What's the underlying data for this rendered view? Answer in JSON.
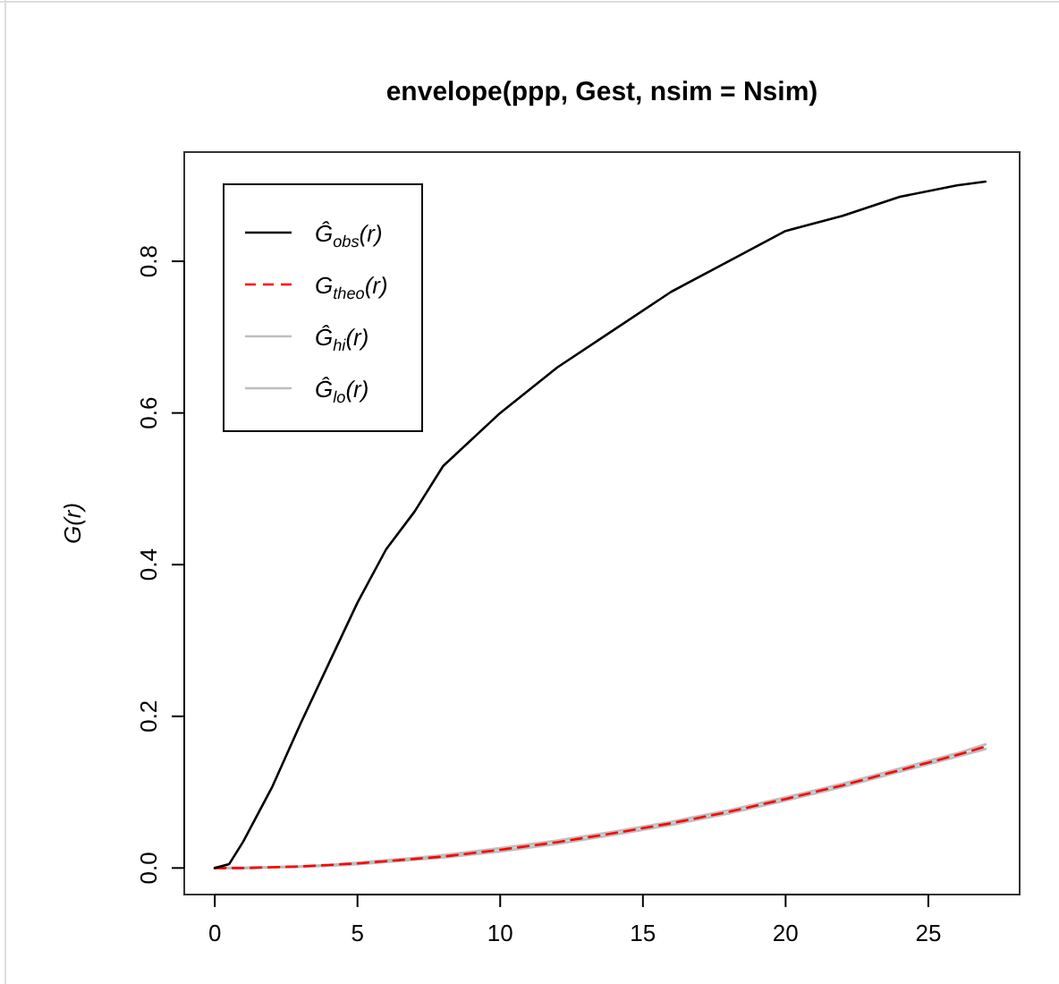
{
  "chart_data": {
    "type": "line",
    "title": "envelope(ppp, Gest, nsim = Nsim)",
    "ylabel": "G(r)",
    "x": [
      0,
      0.5,
      1,
      2,
      3,
      4,
      5,
      6,
      7,
      8,
      10,
      12,
      14,
      16,
      18,
      20,
      22,
      24,
      26,
      27
    ],
    "series": [
      {
        "name": "Ĝ$_{obs}$(r)",
        "color": "#000000",
        "line_style": "solid",
        "values": [
          0,
          0.005,
          0.035,
          0.106,
          0.19,
          0.27,
          0.35,
          0.42,
          0.47,
          0.53,
          0.6,
          0.66,
          0.71,
          0.76,
          0.8,
          0.84,
          0.86,
          0.885,
          0.9,
          0.905
        ]
      },
      {
        "name": "G$_{theo}$(r)",
        "color": "#ff0000",
        "line_style": "dashed",
        "values": [
          0,
          0,
          0,
          0.001,
          0.002,
          0.004,
          0.006,
          0.009,
          0.012,
          0.015,
          0.024,
          0.034,
          0.046,
          0.059,
          0.074,
          0.091,
          0.109,
          0.129,
          0.149,
          0.16
        ]
      },
      {
        "name": "Ĝ$_{hi}$(r)",
        "color": "#bebebe",
        "line_style": "solid",
        "values": [
          0,
          0,
          0,
          0.001,
          0.002,
          0.004,
          0.007,
          0.01,
          0.013,
          0.017,
          0.026,
          0.036,
          0.048,
          0.061,
          0.076,
          0.093,
          0.111,
          0.131,
          0.151,
          0.163
        ]
      },
      {
        "name": "Ĝ$_{lo}$(r)",
        "color": "#bebebe",
        "line_style": "solid",
        "values": [
          0,
          0,
          0,
          0.001,
          0.002,
          0.003,
          0.005,
          0.008,
          0.011,
          0.014,
          0.022,
          0.032,
          0.044,
          0.057,
          0.072,
          0.089,
          0.107,
          0.127,
          0.147,
          0.157
        ]
      }
    ],
    "xlim": [
      -1.07,
      28.2
    ],
    "ylim": [
      -0.035,
      0.944
    ],
    "xticks": [
      0,
      5,
      10,
      15,
      20,
      25
    ],
    "yticks": [
      {
        "value": 0,
        "label": "0.0"
      },
      {
        "value": 0.2,
        "label": "0.2"
      },
      {
        "value": 0.4,
        "label": "0.4"
      },
      {
        "value": 0.6,
        "label": "0.6"
      },
      {
        "value": 0.8,
        "label": "0.8"
      }
    ],
    "grid": false,
    "legend": "top left",
    "marker": "none"
  }
}
